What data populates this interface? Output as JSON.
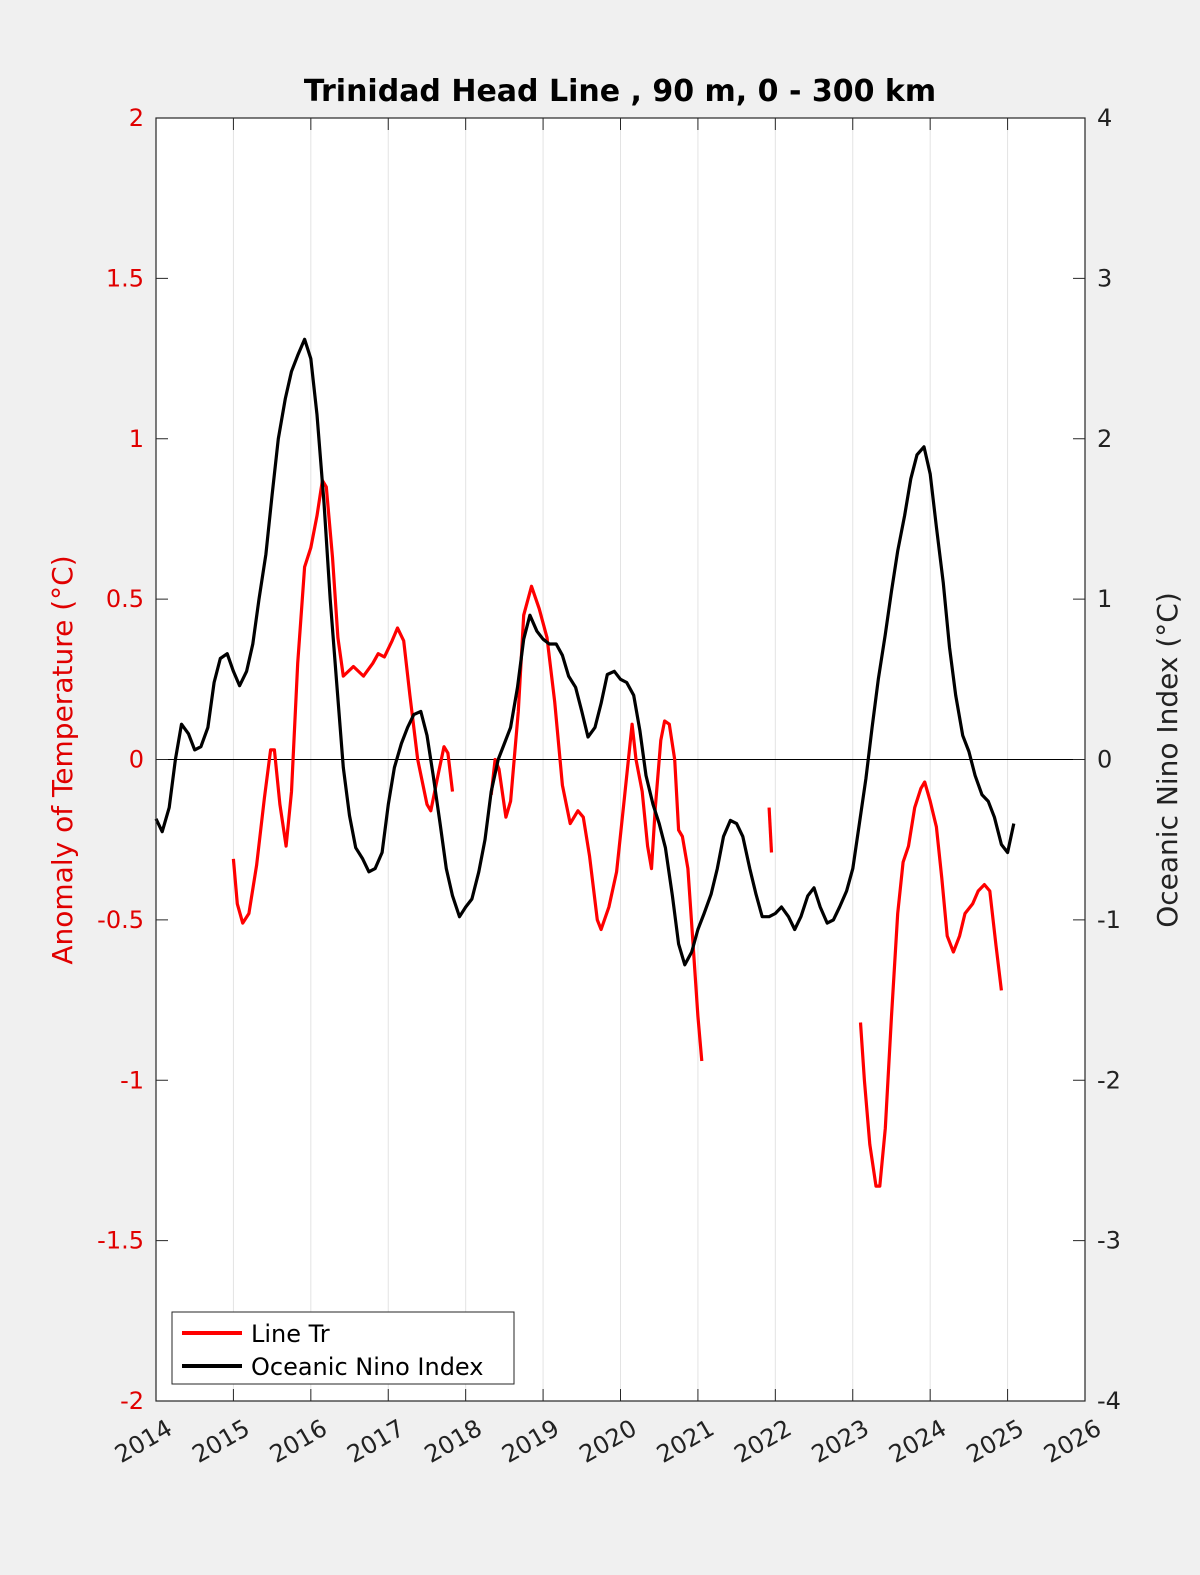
{
  "chart_data": {
    "type": "line",
    "title": "Trinidad Head Line , 90 m, 0 - 300 km",
    "ylabel_left": "Anomaly of Temperature (°C)",
    "ylabel_right": "Oceanic Nino Index (°C)",
    "xlim": [
      2014,
      2026
    ],
    "ylim_left": [
      -2,
      2
    ],
    "ylim_right": [
      -4,
      4
    ],
    "grid": "vertical",
    "legend_position": "bottom-left",
    "x_ticks": [
      "2014",
      "2015",
      "2016",
      "2017",
      "2018",
      "2019",
      "2020",
      "2021",
      "2022",
      "2023",
      "2024",
      "2025",
      "2026"
    ],
    "y_ticks_left": [
      "2",
      "1.5",
      "1",
      "0.5",
      "0",
      "-0.5",
      "-1",
      "-1.5",
      "-2"
    ],
    "y_ticks_right": [
      "4",
      "3",
      "2",
      "1",
      "0",
      "-1",
      "-2",
      "-3",
      "-4"
    ],
    "colors": {
      "line_tr": "#ff0000",
      "oni": "#000000"
    },
    "series": [
      {
        "name": "Line Tr",
        "axis": "left",
        "segments": [
          [
            [
              2015.0,
              -0.31
            ],
            [
              2015.05,
              -0.45
            ],
            [
              2015.12,
              -0.51
            ],
            [
              2015.2,
              -0.48
            ],
            [
              2015.3,
              -0.33
            ],
            [
              2015.4,
              -0.12
            ],
            [
              2015.48,
              0.03
            ],
            [
              2015.53,
              0.03
            ],
            [
              2015.6,
              -0.14
            ],
            [
              2015.68,
              -0.27
            ],
            [
              2015.75,
              -0.1
            ],
            [
              2015.83,
              0.3
            ],
            [
              2015.92,
              0.6
            ],
            [
              2016.0,
              0.66
            ],
            [
              2016.08,
              0.76
            ],
            [
              2016.15,
              0.87
            ],
            [
              2016.2,
              0.85
            ],
            [
              2016.28,
              0.63
            ],
            [
              2016.35,
              0.38
            ],
            [
              2016.42,
              0.26
            ],
            [
              2016.55,
              0.29
            ],
            [
              2016.68,
              0.26
            ],
            [
              2016.8,
              0.3
            ],
            [
              2016.87,
              0.33
            ],
            [
              2016.95,
              0.32
            ],
            [
              2017.05,
              0.37
            ],
            [
              2017.12,
              0.41
            ],
            [
              2017.2,
              0.37
            ],
            [
              2017.28,
              0.2
            ],
            [
              2017.38,
              0.0
            ],
            [
              2017.5,
              -0.14
            ],
            [
              2017.55,
              -0.16
            ],
            [
              2017.65,
              -0.04
            ],
            [
              2017.72,
              0.04
            ],
            [
              2017.77,
              0.02
            ],
            [
              2017.83,
              -0.1
            ]
          ],
          [
            [
              2018.33,
              -0.11
            ],
            [
              2018.38,
              -0.0
            ],
            [
              2018.43,
              -0.03
            ],
            [
              2018.52,
              -0.18
            ],
            [
              2018.58,
              -0.13
            ],
            [
              2018.68,
              0.15
            ],
            [
              2018.75,
              0.45
            ],
            [
              2018.85,
              0.54
            ],
            [
              2018.95,
              0.47
            ],
            [
              2019.05,
              0.38
            ],
            [
              2019.15,
              0.18
            ],
            [
              2019.25,
              -0.08
            ],
            [
              2019.35,
              -0.2
            ],
            [
              2019.45,
              -0.16
            ],
            [
              2019.52,
              -0.18
            ],
            [
              2019.6,
              -0.3
            ],
            [
              2019.7,
              -0.5
            ],
            [
              2019.75,
              -0.53
            ],
            [
              2019.85,
              -0.46
            ],
            [
              2019.95,
              -0.35
            ],
            [
              2020.05,
              -0.12
            ],
            [
              2020.15,
              0.11
            ],
            [
              2020.2,
              0.0
            ],
            [
              2020.28,
              -0.1
            ],
            [
              2020.35,
              -0.27
            ],
            [
              2020.4,
              -0.34
            ],
            [
              2020.45,
              -0.15
            ],
            [
              2020.52,
              0.06
            ],
            [
              2020.57,
              0.12
            ],
            [
              2020.63,
              0.11
            ],
            [
              2020.7,
              0.0
            ],
            [
              2020.75,
              -0.22
            ],
            [
              2020.8,
              -0.24
            ],
            [
              2020.87,
              -0.34
            ],
            [
              2020.93,
              -0.55
            ],
            [
              2021.0,
              -0.8
            ],
            [
              2021.05,
              -0.94
            ]
          ],
          [
            [
              2021.92,
              -0.15
            ],
            [
              2021.95,
              -0.29
            ]
          ],
          [
            [
              2023.1,
              -0.82
            ],
            [
              2023.15,
              -1.0
            ],
            [
              2023.22,
              -1.2
            ],
            [
              2023.3,
              -1.33
            ],
            [
              2023.35,
              -1.33
            ],
            [
              2023.42,
              -1.15
            ],
            [
              2023.5,
              -0.8
            ],
            [
              2023.58,
              -0.48
            ],
            [
              2023.65,
              -0.32
            ],
            [
              2023.72,
              -0.27
            ],
            [
              2023.8,
              -0.15
            ],
            [
              2023.88,
              -0.09
            ],
            [
              2023.93,
              -0.07
            ],
            [
              2024.0,
              -0.13
            ],
            [
              2024.08,
              -0.21
            ],
            [
              2024.15,
              -0.37
            ],
            [
              2024.22,
              -0.55
            ],
            [
              2024.3,
              -0.6
            ],
            [
              2024.38,
              -0.55
            ],
            [
              2024.45,
              -0.48
            ],
            [
              2024.55,
              -0.45
            ],
            [
              2024.62,
              -0.41
            ],
            [
              2024.7,
              -0.39
            ],
            [
              2024.77,
              -0.41
            ],
            [
              2024.85,
              -0.58
            ],
            [
              2024.92,
              -0.72
            ]
          ]
        ]
      },
      {
        "name": "Oceanic Nino Index",
        "axis": "right",
        "segments": [
          [
            [
              2014.0,
              -0.37
            ],
            [
              2014.08,
              -0.45
            ],
            [
              2014.17,
              -0.3
            ],
            [
              2014.25,
              0.0
            ],
            [
              2014.33,
              0.22
            ],
            [
              2014.42,
              0.16
            ],
            [
              2014.5,
              0.06
            ],
            [
              2014.58,
              0.08
            ],
            [
              2014.67,
              0.2
            ],
            [
              2014.75,
              0.48
            ],
            [
              2014.83,
              0.63
            ],
            [
              2014.92,
              0.66
            ],
            [
              2015.0,
              0.55
            ],
            [
              2015.08,
              0.46
            ],
            [
              2015.17,
              0.55
            ],
            [
              2015.25,
              0.72
            ],
            [
              2015.33,
              1.0
            ],
            [
              2015.42,
              1.28
            ],
            [
              2015.5,
              1.65
            ],
            [
              2015.58,
              2.0
            ],
            [
              2015.67,
              2.25
            ],
            [
              2015.75,
              2.42
            ],
            [
              2015.83,
              2.52
            ],
            [
              2015.92,
              2.62
            ],
            [
              2016.0,
              2.5
            ],
            [
              2016.08,
              2.15
            ],
            [
              2016.17,
              1.6
            ],
            [
              2016.25,
              1.0
            ],
            [
              2016.33,
              0.5
            ],
            [
              2016.42,
              -0.05
            ],
            [
              2016.5,
              -0.35
            ],
            [
              2016.58,
              -0.55
            ],
            [
              2016.67,
              -0.62
            ],
            [
              2016.75,
              -0.7
            ],
            [
              2016.83,
              -0.68
            ],
            [
              2016.92,
              -0.58
            ],
            [
              2017.0,
              -0.28
            ],
            [
              2017.08,
              -0.05
            ],
            [
              2017.17,
              0.1
            ],
            [
              2017.25,
              0.2
            ],
            [
              2017.33,
              0.28
            ],
            [
              2017.42,
              0.3
            ],
            [
              2017.5,
              0.15
            ],
            [
              2017.58,
              -0.1
            ],
            [
              2017.67,
              -0.4
            ],
            [
              2017.75,
              -0.68
            ],
            [
              2017.83,
              -0.85
            ],
            [
              2017.92,
              -0.98
            ],
            [
              2018.0,
              -0.92
            ],
            [
              2018.08,
              -0.87
            ],
            [
              2018.17,
              -0.7
            ],
            [
              2018.25,
              -0.5
            ],
            [
              2018.33,
              -0.2
            ],
            [
              2018.42,
              0.0
            ],
            [
              2018.5,
              0.1
            ],
            [
              2018.58,
              0.2
            ],
            [
              2018.67,
              0.45
            ],
            [
              2018.75,
              0.75
            ],
            [
              2018.83,
              0.9
            ],
            [
              2018.92,
              0.8
            ],
            [
              2019.0,
              0.75
            ],
            [
              2019.08,
              0.72
            ],
            [
              2019.17,
              0.72
            ],
            [
              2019.25,
              0.65
            ],
            [
              2019.33,
              0.52
            ],
            [
              2019.42,
              0.45
            ],
            [
              2019.5,
              0.3
            ],
            [
              2019.58,
              0.14
            ],
            [
              2019.67,
              0.2
            ],
            [
              2019.75,
              0.35
            ],
            [
              2019.83,
              0.53
            ],
            [
              2019.92,
              0.55
            ],
            [
              2020.0,
              0.5
            ],
            [
              2020.08,
              0.48
            ],
            [
              2020.17,
              0.4
            ],
            [
              2020.25,
              0.18
            ],
            [
              2020.33,
              -0.1
            ],
            [
              2020.42,
              -0.28
            ],
            [
              2020.5,
              -0.4
            ],
            [
              2020.58,
              -0.55
            ],
            [
              2020.67,
              -0.85
            ],
            [
              2020.75,
              -1.15
            ],
            [
              2020.83,
              -1.28
            ],
            [
              2020.92,
              -1.2
            ],
            [
              2021.0,
              -1.06
            ],
            [
              2021.08,
              -0.96
            ],
            [
              2021.17,
              -0.84
            ],
            [
              2021.25,
              -0.68
            ],
            [
              2021.33,
              -0.48
            ],
            [
              2021.42,
              -0.38
            ],
            [
              2021.5,
              -0.4
            ],
            [
              2021.58,
              -0.48
            ],
            [
              2021.67,
              -0.68
            ],
            [
              2021.75,
              -0.84
            ],
            [
              2021.83,
              -0.98
            ],
            [
              2021.92,
              -0.98
            ],
            [
              2022.0,
              -0.96
            ],
            [
              2022.08,
              -0.92
            ],
            [
              2022.17,
              -0.98
            ],
            [
              2022.25,
              -1.06
            ],
            [
              2022.33,
              -0.98
            ],
            [
              2022.42,
              -0.85
            ],
            [
              2022.5,
              -0.8
            ],
            [
              2022.58,
              -0.92
            ],
            [
              2022.67,
              -1.02
            ],
            [
              2022.75,
              -1.0
            ],
            [
              2022.83,
              -0.92
            ],
            [
              2022.92,
              -0.82
            ],
            [
              2023.0,
              -0.68
            ],
            [
              2023.08,
              -0.42
            ],
            [
              2023.17,
              -0.12
            ],
            [
              2023.25,
              0.2
            ],
            [
              2023.33,
              0.5
            ],
            [
              2023.42,
              0.78
            ],
            [
              2023.5,
              1.05
            ],
            [
              2023.58,
              1.3
            ],
            [
              2023.67,
              1.52
            ],
            [
              2023.75,
              1.75
            ],
            [
              2023.83,
              1.9
            ],
            [
              2023.92,
              1.95
            ],
            [
              2024.0,
              1.78
            ],
            [
              2024.08,
              1.45
            ],
            [
              2024.17,
              1.1
            ],
            [
              2024.25,
              0.7
            ],
            [
              2024.33,
              0.4
            ],
            [
              2024.42,
              0.15
            ],
            [
              2024.5,
              0.05
            ],
            [
              2024.58,
              -0.1
            ],
            [
              2024.67,
              -0.22
            ],
            [
              2024.75,
              -0.26
            ],
            [
              2024.83,
              -0.36
            ],
            [
              2024.92,
              -0.53
            ],
            [
              2025.0,
              -0.58
            ],
            [
              2025.08,
              -0.4
            ]
          ]
        ]
      }
    ]
  }
}
